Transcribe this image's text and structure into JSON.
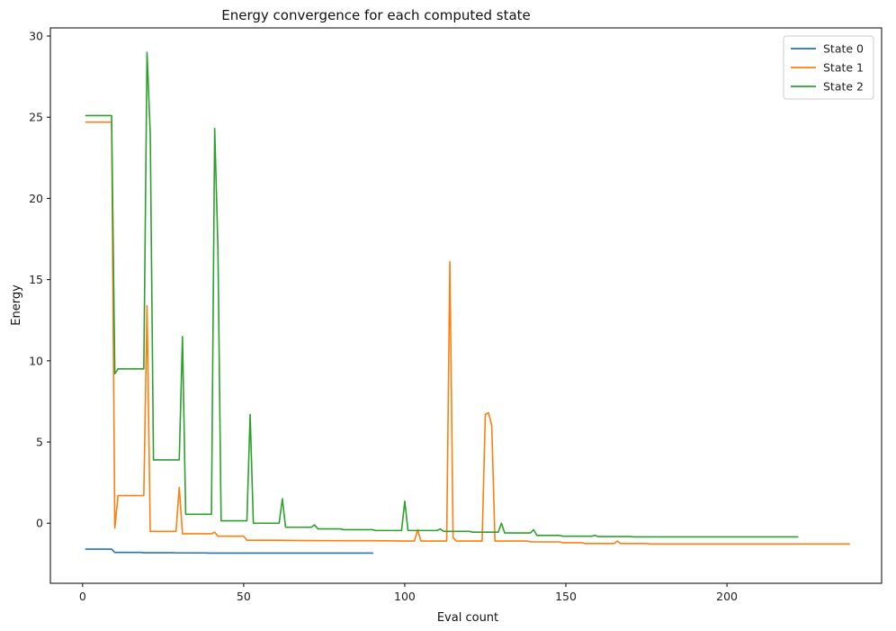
{
  "chart_data": {
    "type": "line",
    "title": "Energy convergence for each computed state",
    "xlabel": "Eval count",
    "ylabel": "Energy",
    "xlim": [
      -10,
      248
    ],
    "ylim": [
      -3.7,
      30.5
    ],
    "xticks": [
      0,
      50,
      100,
      150,
      200
    ],
    "yticks": [
      0,
      5,
      10,
      15,
      20,
      25,
      30
    ],
    "legend_position": "top-right",
    "grid": false,
    "series": [
      {
        "name": "State 0",
        "color": "#1f77b4",
        "points": [
          [
            1,
            -1.6
          ],
          [
            9,
            -1.6
          ],
          [
            10,
            -1.8
          ],
          [
            18,
            -1.8
          ],
          [
            19,
            -1.82
          ],
          [
            28,
            -1.82
          ],
          [
            29,
            -1.83
          ],
          [
            38,
            -1.83
          ],
          [
            39,
            -1.84
          ],
          [
            90,
            -1.84
          ]
        ]
      },
      {
        "name": "State 1",
        "color": "#ff7f0e",
        "points": [
          [
            1,
            24.7
          ],
          [
            9,
            24.7
          ],
          [
            10,
            -0.3
          ],
          [
            11,
            1.7
          ],
          [
            19,
            1.7
          ],
          [
            20,
            13.4
          ],
          [
            21,
            -0.5
          ],
          [
            29,
            -0.5
          ],
          [
            30,
            2.2
          ],
          [
            31,
            -0.65
          ],
          [
            40,
            -0.65
          ],
          [
            41,
            -0.55
          ],
          [
            42,
            -0.8
          ],
          [
            50,
            -0.8
          ],
          [
            51,
            -1.05
          ],
          [
            60,
            -1.05
          ],
          [
            70,
            -1.07
          ],
          [
            90,
            -1.08
          ],
          [
            100,
            -1.1
          ],
          [
            103,
            -1.1
          ],
          [
            104,
            -0.4
          ],
          [
            105,
            -1.1
          ],
          [
            113,
            -1.1
          ],
          [
            114,
            16.1
          ],
          [
            115,
            -0.9
          ],
          [
            116,
            -1.1
          ],
          [
            124,
            -1.1
          ],
          [
            125,
            6.7
          ],
          [
            126,
            6.8
          ],
          [
            127,
            6.0
          ],
          [
            128,
            -1.1
          ],
          [
            138,
            -1.1
          ],
          [
            139,
            -1.15
          ],
          [
            148,
            -1.15
          ],
          [
            149,
            -1.2
          ],
          [
            155,
            -1.2
          ],
          [
            156,
            -1.25
          ],
          [
            165,
            -1.25
          ],
          [
            166,
            -1.1
          ],
          [
            167,
            -1.25
          ],
          [
            175,
            -1.25
          ],
          [
            176,
            -1.28
          ],
          [
            238,
            -1.28
          ]
        ]
      },
      {
        "name": "State 2",
        "color": "#2ca02c",
        "points": [
          [
            1,
            25.1
          ],
          [
            9,
            25.1
          ],
          [
            10,
            9.2
          ],
          [
            11,
            9.5
          ],
          [
            19,
            9.5
          ],
          [
            20,
            29.0
          ],
          [
            21,
            24.0
          ],
          [
            22,
            3.9
          ],
          [
            30,
            3.9
          ],
          [
            31,
            11.5
          ],
          [
            32,
            0.55
          ],
          [
            40,
            0.55
          ],
          [
            41,
            24.3
          ],
          [
            42,
            17.0
          ],
          [
            43,
            0.15
          ],
          [
            51,
            0.15
          ],
          [
            52,
            6.7
          ],
          [
            53,
            0.0
          ],
          [
            61,
            0.0
          ],
          [
            62,
            1.5
          ],
          [
            63,
            -0.25
          ],
          [
            71,
            -0.25
          ],
          [
            72,
            -0.1
          ],
          [
            73,
            -0.35
          ],
          [
            80,
            -0.35
          ],
          [
            81,
            -0.4
          ],
          [
            90,
            -0.4
          ],
          [
            91,
            -0.45
          ],
          [
            99,
            -0.45
          ],
          [
            100,
            1.35
          ],
          [
            101,
            -0.45
          ],
          [
            110,
            -0.45
          ],
          [
            111,
            -0.35
          ],
          [
            112,
            -0.5
          ],
          [
            120,
            -0.5
          ],
          [
            121,
            -0.55
          ],
          [
            129,
            -0.55
          ],
          [
            130,
            0.0
          ],
          [
            131,
            -0.6
          ],
          [
            139,
            -0.6
          ],
          [
            140,
            -0.4
          ],
          [
            141,
            -0.75
          ],
          [
            148,
            -0.75
          ],
          [
            149,
            -0.8
          ],
          [
            158,
            -0.8
          ],
          [
            159,
            -0.75
          ],
          [
            160,
            -0.82
          ],
          [
            170,
            -0.82
          ],
          [
            171,
            -0.84
          ],
          [
            222,
            -0.84
          ]
        ]
      }
    ]
  }
}
